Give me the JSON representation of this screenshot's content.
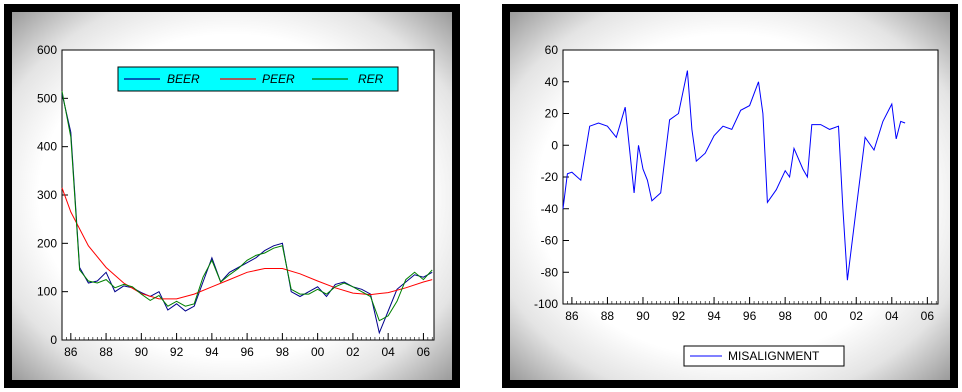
{
  "chart_data": [
    {
      "type": "line",
      "title": "",
      "xlabel": "",
      "ylabel": "",
      "xlim": [
        1985.5,
        2006.6
      ],
      "ylim": [
        0,
        600
      ],
      "x_ticks": [
        "86",
        "88",
        "90",
        "92",
        "94",
        "96",
        "98",
        "00",
        "02",
        "04",
        "06"
      ],
      "y_ticks": [
        "0",
        "100",
        "200",
        "300",
        "400",
        "500",
        "600"
      ],
      "legend": {
        "position": "top-center",
        "background": "#00ffff"
      },
      "series": [
        {
          "name": "BEER",
          "color": "#00008b",
          "x": [
            1985.5,
            1986,
            1986.5,
            1987,
            1987.5,
            1988,
            1988.5,
            1989,
            1989.5,
            1990,
            1990.5,
            1991,
            1991.5,
            1992,
            1992.5,
            1993,
            1993.5,
            1994,
            1994.5,
            1995,
            1995.5,
            1996,
            1996.5,
            1997,
            1997.5,
            1998,
            1998.5,
            1999,
            1999.5,
            2000,
            2000.5,
            2001,
            2001.5,
            2002,
            2002.5,
            2003,
            2003.5,
            2004,
            2004.5,
            2005,
            2005.5,
            2006,
            2006.5
          ],
          "values": [
            510,
            430,
            150,
            118,
            122,
            140,
            100,
            112,
            108,
            98,
            90,
            100,
            62,
            75,
            60,
            70,
            120,
            170,
            120,
            140,
            150,
            160,
            170,
            185,
            195,
            200,
            100,
            90,
            100,
            110,
            90,
            115,
            120,
            110,
            105,
            95,
            15,
            60,
            105,
            120,
            135,
            130,
            140
          ]
        },
        {
          "name": "PEER",
          "color": "#ff0000",
          "x": [
            1985.5,
            1986,
            1987,
            1988,
            1989,
            1990,
            1991,
            1992,
            1993,
            1994,
            1995,
            1996,
            1997,
            1998,
            1999,
            2000,
            2001,
            2002,
            2003,
            2004,
            2005,
            2006,
            2006.5
          ],
          "values": [
            315,
            265,
            195,
            150,
            118,
            96,
            85,
            85,
            95,
            110,
            125,
            140,
            148,
            148,
            137,
            122,
            108,
            97,
            94,
            98,
            108,
            120,
            125
          ]
        },
        {
          "name": "RER",
          "color": "#008000",
          "x": [
            1985.5,
            1986,
            1986.5,
            1987,
            1987.5,
            1988,
            1988.5,
            1989,
            1989.5,
            1990,
            1990.5,
            1991,
            1991.5,
            1992,
            1992.5,
            1993,
            1993.5,
            1994,
            1994.5,
            1995,
            1995.5,
            1996,
            1996.5,
            1997,
            1997.5,
            1998,
            1998.5,
            1999,
            1999.5,
            2000,
            2000.5,
            2001,
            2001.5,
            2002,
            2002.5,
            2003,
            2003.5,
            2004,
            2004.5,
            2005,
            2005.5,
            2006,
            2006.5
          ],
          "values": [
            515,
            420,
            145,
            122,
            118,
            125,
            108,
            115,
            110,
            95,
            82,
            92,
            70,
            80,
            70,
            75,
            130,
            165,
            120,
            135,
            148,
            165,
            175,
            180,
            190,
            195,
            105,
            95,
            95,
            105,
            95,
            110,
            118,
            110,
            100,
            90,
            40,
            50,
            80,
            125,
            140,
            125,
            145
          ]
        }
      ]
    },
    {
      "type": "line",
      "title": "",
      "xlabel": "",
      "ylabel": "",
      "xlim": [
        1985.5,
        2006.6
      ],
      "ylim": [
        -100,
        60
      ],
      "x_ticks": [
        "86",
        "88",
        "90",
        "92",
        "94",
        "96",
        "98",
        "00",
        "02",
        "04",
        "06"
      ],
      "y_ticks": [
        "60",
        "40",
        "20",
        "0",
        "-20",
        "-40",
        "-60",
        "-80",
        "-100"
      ],
      "legend": {
        "position": "bottom-center"
      },
      "series": [
        {
          "name": "MISALIGNMENT",
          "color": "#0000ff",
          "x": [
            1985.5,
            1985.75,
            1986,
            1986.5,
            1987,
            1987.5,
            1988,
            1988.5,
            1989,
            1989.5,
            1989.75,
            1990,
            1990.25,
            1990.5,
            1991,
            1991.5,
            1992,
            1992.5,
            1992.75,
            1993,
            1993.5,
            1994,
            1994.5,
            1995,
            1995.5,
            1996,
            1996.5,
            1996.75,
            1997,
            1997.5,
            1998,
            1998.25,
            1998.5,
            1999,
            1999.25,
            1999.5,
            2000,
            2000.5,
            2001,
            2001.25,
            2001.5,
            2002,
            2002.5,
            2003,
            2003.5,
            2004,
            2004.25,
            2004.5,
            2004.75
          ],
          "values": [
            -40,
            -18,
            -17,
            -22,
            12,
            14,
            12,
            5,
            24,
            -30,
            0,
            -15,
            -22,
            -35,
            -30,
            16,
            20,
            47,
            10,
            -10,
            -5,
            6,
            12,
            10,
            22,
            25,
            40,
            20,
            -36,
            -28,
            -16,
            -20,
            -2,
            -15,
            -20,
            13,
            13,
            10,
            12,
            -40,
            -85,
            -40,
            5,
            -3,
            15,
            26,
            4,
            15,
            14
          ]
        }
      ]
    }
  ]
}
